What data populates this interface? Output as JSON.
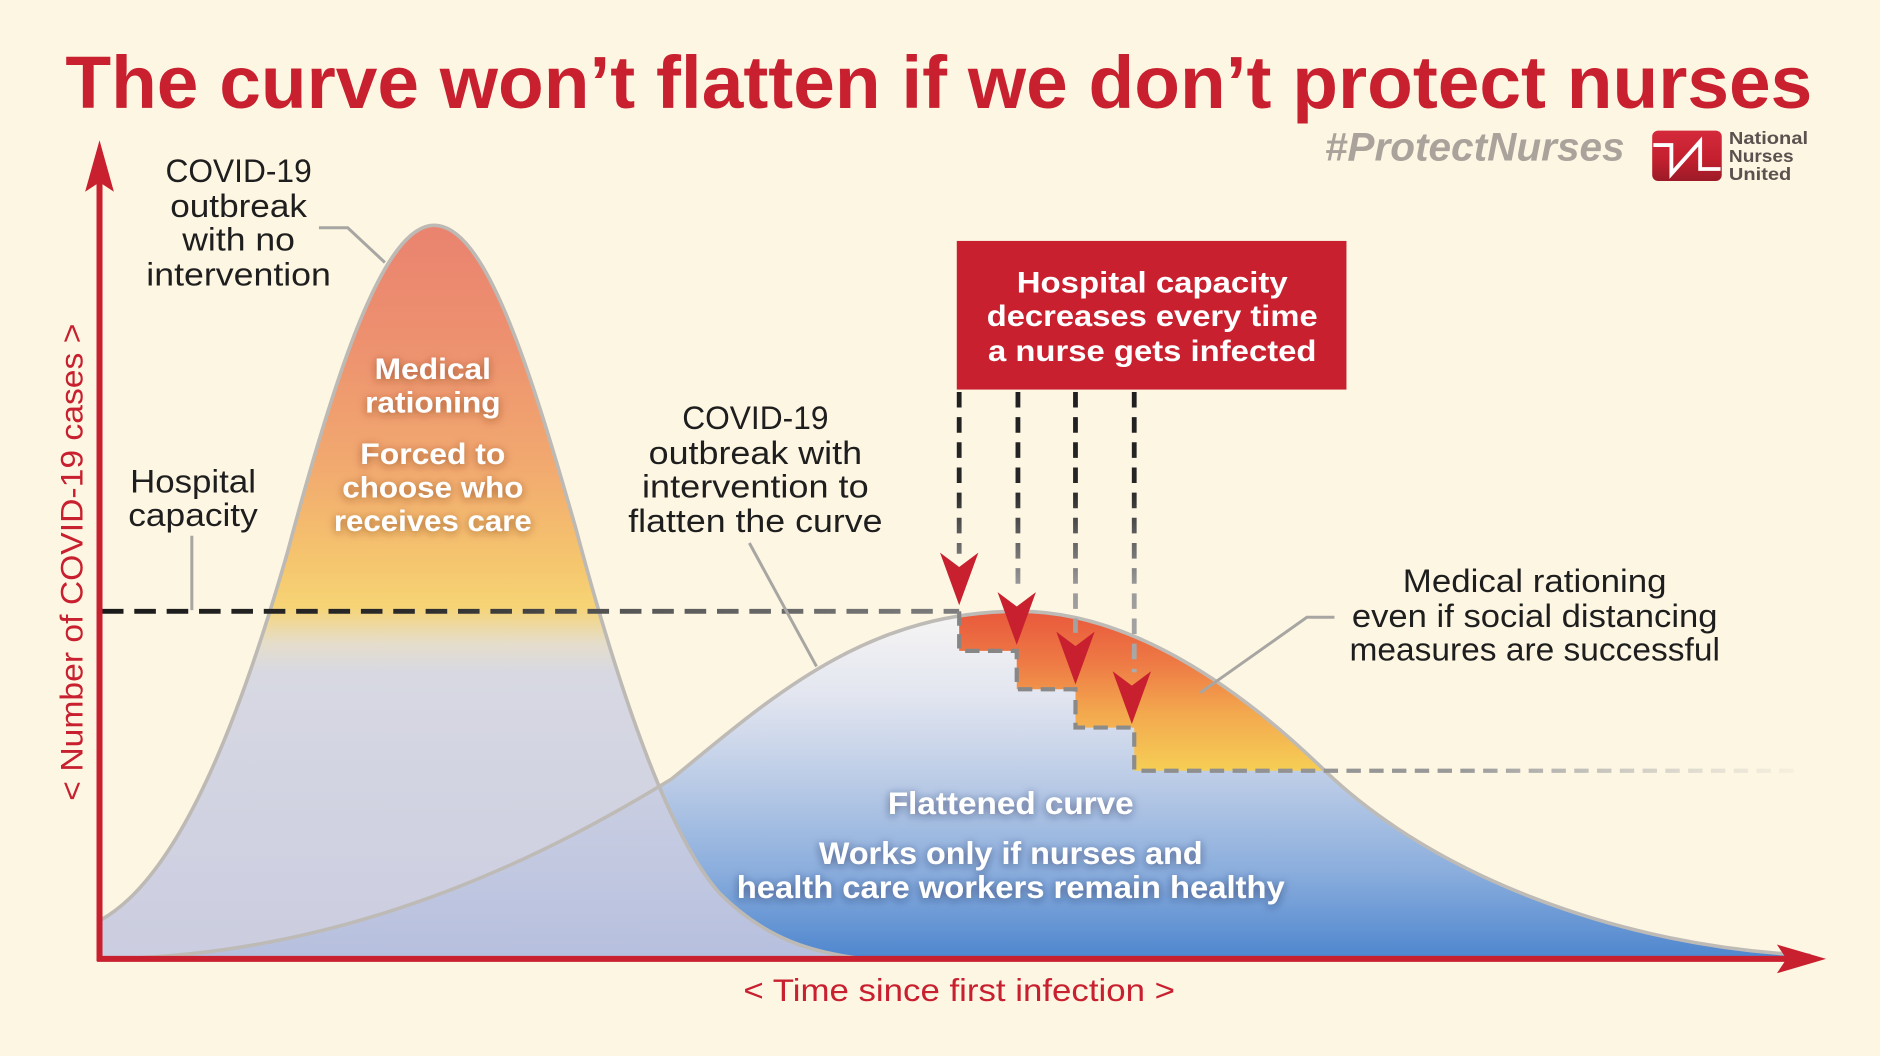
{
  "colors": {
    "background": "#FDF6E3",
    "accent_red": "#C8202F",
    "hashtag_gray": "#A9A39C",
    "annotation_text": "#1E1E1E",
    "rationing_orange": "#EE7A45",
    "flattened_blue": "#4E86CE"
  },
  "header": {
    "hashtag": "#ProtectNurses",
    "logo": {
      "icon": "national-nurses-united-logo-icon",
      "lines": [
        "National",
        "Nurses",
        "United"
      ]
    }
  },
  "chart_data": {
    "type": "area",
    "title": "The curve won’t flatten if we don’t protect nurses",
    "xlabel": "< Time since first infection >",
    "ylabel": "< Number of COVID-19 cases >",
    "grid": false,
    "legend": "none",
    "annotations": {
      "no_intervention": [
        "COVID-19",
        "outbreak",
        "with no",
        "intervention"
      ],
      "hospital_capacity": [
        "Hospital",
        "capacity"
      ],
      "peak_rationing": [
        "Medical",
        "rationing"
      ],
      "peak_choice": [
        "Forced to",
        "choose who",
        "receives care"
      ],
      "with_intervention": [
        "COVID-19",
        "outbreak with",
        "intervention to",
        "flatten the curve"
      ],
      "capacity_box": [
        "Hospital capacity",
        "decreases every time",
        "a nurse gets infected"
      ],
      "flat_rationing": [
        "Medical rationing",
        "even if social distancing",
        "measures are successful"
      ],
      "flattened_title": "Flattened curve",
      "flattened_note": [
        "Works only if nurses and",
        "health care workers remain healthy"
      ]
    }
  }
}
